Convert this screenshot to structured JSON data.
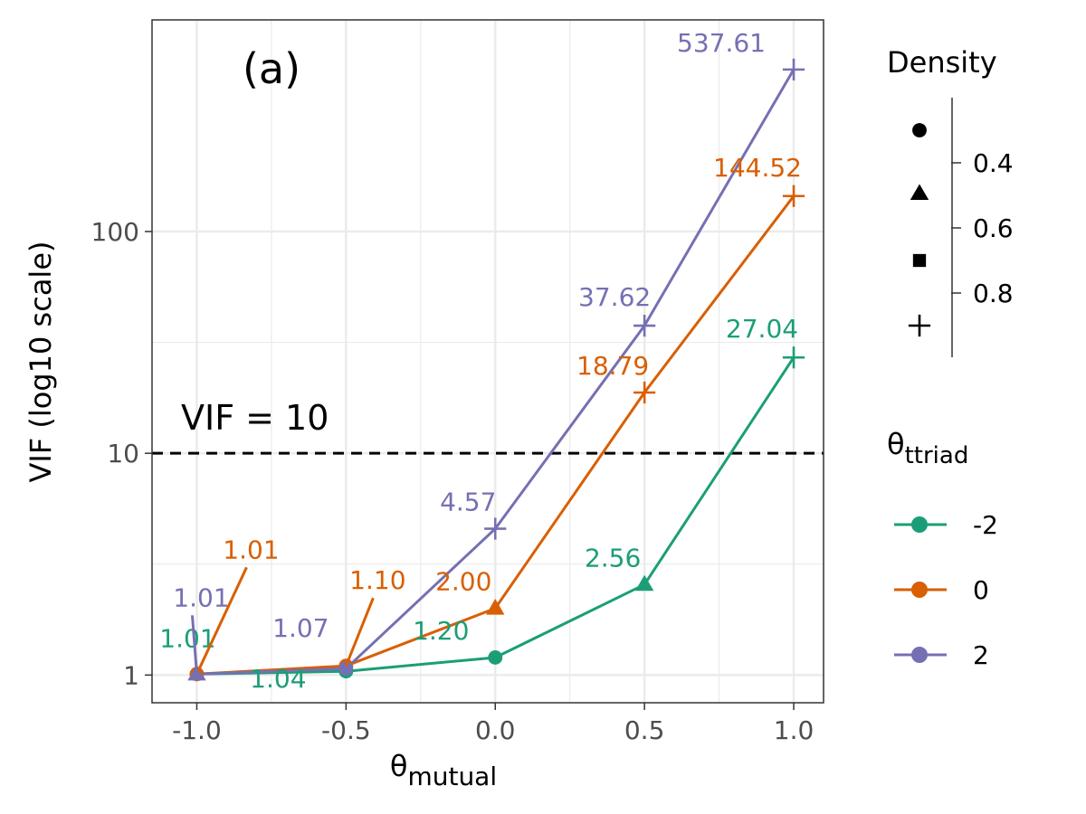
{
  "chart_data": {
    "type": "line",
    "panel_label": "(a)",
    "xlabel": "θ",
    "xlabel_sub": "mutual",
    "ylabel": "VIF (log10 scale)",
    "y_scale": "log10",
    "xlim": [
      -1.15,
      1.1
    ],
    "ylim": [
      0.75,
      900
    ],
    "x_ticks": [
      -1.0,
      -0.5,
      0.0,
      0.5,
      1.0
    ],
    "x_tick_labels": [
      "-1.0",
      "-0.5",
      "0.0",
      "0.5",
      "1.0"
    ],
    "y_ticks": [
      1,
      10,
      100
    ],
    "y_tick_labels": [
      "1",
      "10",
      "100"
    ],
    "reference_line": {
      "y": 10,
      "label": "VIF = 10",
      "style": "dashed"
    },
    "grid": true,
    "series": [
      {
        "name": "-2",
        "color": "#1b9e77",
        "points": [
          {
            "x": -1.0,
            "y": 1.01,
            "density": "0.2",
            "label": "1.01"
          },
          {
            "x": -0.5,
            "y": 1.04,
            "density": "0.2",
            "label": "1.04"
          },
          {
            "x": 0.0,
            "y": 1.2,
            "density": "0.2",
            "label": "1.20"
          },
          {
            "x": 0.5,
            "y": 2.56,
            "density": "0.4",
            "label": "2.56"
          },
          {
            "x": 1.0,
            "y": 27.04,
            "density": "0.8",
            "label": "27.04"
          }
        ]
      },
      {
        "name": "0",
        "color": "#d95f02",
        "points": [
          {
            "x": -1.0,
            "y": 1.01,
            "density": "0.2",
            "label": "1.01"
          },
          {
            "x": -0.5,
            "y": 1.1,
            "density": "0.2",
            "label": "1.10"
          },
          {
            "x": 0.0,
            "y": 2.0,
            "density": "0.4",
            "label": "2.00"
          },
          {
            "x": 0.5,
            "y": 18.79,
            "density": "0.8",
            "label": "18.79"
          },
          {
            "x": 1.0,
            "y": 144.52,
            "density": "0.8",
            "label": "144.52"
          }
        ]
      },
      {
        "name": "2",
        "color": "#7570b3",
        "points": [
          {
            "x": -1.0,
            "y": 1.01,
            "density": "0.4",
            "label": "1.01"
          },
          {
            "x": -0.5,
            "y": 1.07,
            "density": "0.2",
            "label": "1.07"
          },
          {
            "x": 0.0,
            "y": 4.57,
            "density": "0.8",
            "label": "4.57"
          },
          {
            "x": 0.5,
            "y": 37.62,
            "density": "0.8",
            "label": "37.62"
          },
          {
            "x": 1.0,
            "y": 537.61,
            "density": "0.8",
            "label": "537.61"
          }
        ]
      }
    ],
    "legend_density": {
      "title": "Density",
      "scale_labels": [
        "0.4",
        "0.6",
        "0.8"
      ],
      "shapes": [
        "circle",
        "triangle",
        "square",
        "plus"
      ],
      "placement": "right"
    },
    "legend_ttriad": {
      "title": "θ",
      "title_sub": "ttriad",
      "entries": [
        "-2",
        "0",
        "2"
      ],
      "placement": "right"
    }
  }
}
